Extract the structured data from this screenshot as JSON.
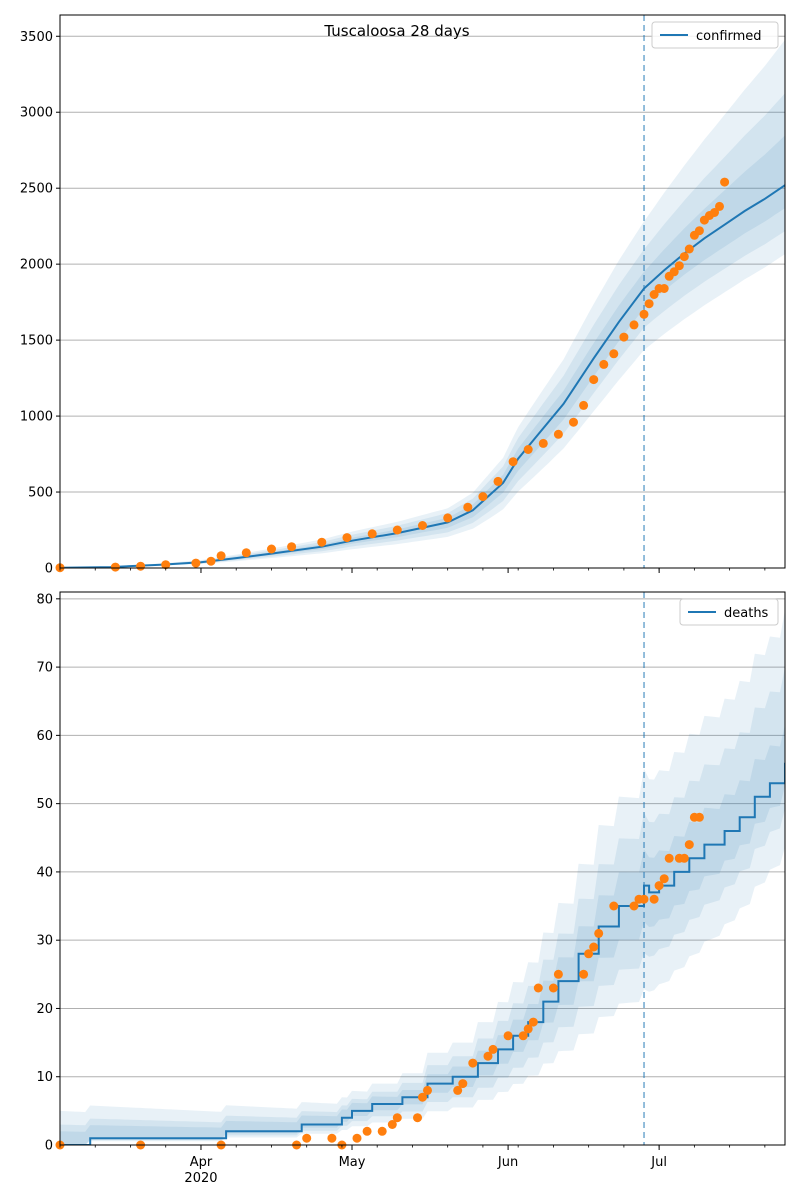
{
  "chart_data": [
    {
      "type": "line",
      "title": "Tuscaloosa 28 days",
      "xlabel": "",
      "ylabel": "",
      "x_axis": {
        "type": "date",
        "range": [
          "2020-03-04",
          "2020-07-26"
        ],
        "major_ticks": [
          {
            "date": "2020-04-01",
            "label": "Apr",
            "sublabel": "2020"
          },
          {
            "date": "2020-05-01",
            "label": "May",
            "sublabel": ""
          },
          {
            "date": "2020-06-01",
            "label": "Jun",
            "sublabel": ""
          },
          {
            "date": "2020-07-01",
            "label": "Jul",
            "sublabel": ""
          }
        ]
      },
      "ylim": [
        0,
        3640
      ],
      "yticks": [
        0,
        500,
        1000,
        1500,
        2000,
        2500,
        3000,
        3500
      ],
      "grid": "horizontal",
      "legend": {
        "position": "top-right",
        "entries": [
          "confirmed"
        ]
      },
      "forecast_start": "2020-06-28",
      "series": [
        {
          "name": "confirmed",
          "kind": "line",
          "color": "#1f77b4",
          "points": [
            [
              "2020-03-04",
              2
            ],
            [
              "2020-03-14",
              6
            ],
            [
              "2020-03-24",
              22
            ],
            [
              "2020-04-01",
              38
            ],
            [
              "2020-04-08",
              65
            ],
            [
              "2020-04-15",
              95
            ],
            [
              "2020-04-25",
              140
            ],
            [
              "2020-05-01",
              180
            ],
            [
              "2020-05-10",
              230
            ],
            [
              "2020-05-20",
              300
            ],
            [
              "2020-05-25",
              380
            ],
            [
              "2020-05-31",
              560
            ],
            [
              "2020-06-03",
              720
            ],
            [
              "2020-06-07",
              880
            ],
            [
              "2020-06-12",
              1080
            ],
            [
              "2020-06-18",
              1380
            ],
            [
              "2020-06-23",
              1620
            ],
            [
              "2020-06-28",
              1840
            ],
            [
              "2020-07-02",
              1960
            ],
            [
              "2020-07-06",
              2070
            ],
            [
              "2020-07-10",
              2170
            ],
            [
              "2020-07-14",
              2260
            ],
            [
              "2020-07-18",
              2350
            ],
            [
              "2020-07-22",
              2430
            ],
            [
              "2020-07-26",
              2520
            ]
          ]
        }
      ],
      "observed": {
        "color": "#ff7f0e",
        "points": [
          [
            "2020-03-04",
            2
          ],
          [
            "2020-03-15",
            6
          ],
          [
            "2020-03-20",
            12
          ],
          [
            "2020-03-25",
            22
          ],
          [
            "2020-03-31",
            32
          ],
          [
            "2020-04-03",
            45
          ],
          [
            "2020-04-05",
            80
          ],
          [
            "2020-04-10",
            100
          ],
          [
            "2020-04-15",
            125
          ],
          [
            "2020-04-19",
            140
          ],
          [
            "2020-04-25",
            170
          ],
          [
            "2020-04-30",
            200
          ],
          [
            "2020-05-05",
            225
          ],
          [
            "2020-05-10",
            250
          ],
          [
            "2020-05-15",
            280
          ],
          [
            "2020-05-20",
            330
          ],
          [
            "2020-05-24",
            400
          ],
          [
            "2020-05-27",
            470
          ],
          [
            "2020-05-30",
            570
          ],
          [
            "2020-06-02",
            700
          ],
          [
            "2020-06-05",
            780
          ],
          [
            "2020-06-08",
            820
          ],
          [
            "2020-06-11",
            880
          ],
          [
            "2020-06-14",
            960
          ],
          [
            "2020-06-16",
            1070
          ],
          [
            "2020-06-18",
            1240
          ],
          [
            "2020-06-20",
            1340
          ],
          [
            "2020-06-22",
            1410
          ],
          [
            "2020-06-24",
            1520
          ],
          [
            "2020-06-26",
            1600
          ],
          [
            "2020-06-28",
            1670
          ],
          [
            "2020-06-29",
            1740
          ],
          [
            "2020-06-30",
            1800
          ],
          [
            "2020-07-01",
            1840
          ],
          [
            "2020-07-02",
            1840
          ],
          [
            "2020-07-03",
            1920
          ],
          [
            "2020-07-04",
            1950
          ],
          [
            "2020-07-05",
            1990
          ],
          [
            "2020-07-06",
            2050
          ],
          [
            "2020-07-07",
            2100
          ],
          [
            "2020-07-08",
            2190
          ],
          [
            "2020-07-09",
            2220
          ],
          [
            "2020-07-10",
            2290
          ],
          [
            "2020-07-11",
            2320
          ],
          [
            "2020-07-12",
            2340
          ],
          [
            "2020-07-13",
            2380
          ],
          [
            "2020-07-14",
            2540
          ]
        ]
      },
      "bands": {
        "color": "#1f77b4",
        "levels": [
          {
            "opacity": 0.1,
            "lower": [
              [
                0,
                0.7
              ],
              [
                85,
                0.68
              ],
              [
                116,
                0.78
              ],
              [
                144,
                0.82
              ]
            ],
            "upper": [
              [
                0,
                1.4
              ],
              [
                85,
                1.3
              ],
              [
                116,
                1.24
              ],
              [
                144,
                1.38
              ]
            ]
          },
          {
            "opacity": 0.1,
            "lower": [
              [
                0,
                0.8
              ],
              [
                85,
                0.78
              ],
              [
                116,
                0.86
              ],
              [
                144,
                0.88
              ]
            ],
            "upper": [
              [
                0,
                1.25
              ],
              [
                85,
                1.2
              ],
              [
                116,
                1.14
              ],
              [
                144,
                1.24
              ]
            ]
          },
          {
            "opacity": 0.1,
            "lower": [
              [
                0,
                0.9
              ],
              [
                85,
                0.88
              ],
              [
                116,
                0.93
              ],
              [
                144,
                0.94
              ]
            ],
            "upper": [
              [
                0,
                1.12
              ],
              [
                85,
                1.1
              ],
              [
                116,
                1.06
              ],
              [
                144,
                1.13
              ]
            ]
          }
        ]
      }
    },
    {
      "type": "line",
      "title": "",
      "xlabel": "",
      "ylabel": "",
      "ylim": [
        0,
        81
      ],
      "yticks": [
        0,
        10,
        20,
        30,
        40,
        50,
        60,
        70,
        80
      ],
      "grid": "horizontal",
      "legend": {
        "position": "top-right",
        "entries": [
          "deaths"
        ]
      },
      "forecast_start": "2020-06-28",
      "series": [
        {
          "name": "deaths",
          "kind": "step",
          "color": "#1f77b4",
          "points": [
            [
              "2020-03-04",
              0
            ],
            [
              "2020-03-10",
              1
            ],
            [
              "2020-04-06",
              2
            ],
            [
              "2020-04-21",
              3
            ],
            [
              "2020-04-29",
              4
            ],
            [
              "2020-05-01",
              5
            ],
            [
              "2020-05-05",
              6
            ],
            [
              "2020-05-11",
              7
            ],
            [
              "2020-05-16",
              9
            ],
            [
              "2020-05-21",
              10
            ],
            [
              "2020-05-26",
              12
            ],
            [
              "2020-05-30",
              14
            ],
            [
              "2020-06-02",
              16
            ],
            [
              "2020-06-05",
              18
            ],
            [
              "2020-06-08",
              21
            ],
            [
              "2020-06-11",
              24
            ],
            [
              "2020-06-15",
              28
            ],
            [
              "2020-06-19",
              32
            ],
            [
              "2020-06-23",
              35
            ],
            [
              "2020-06-28",
              38
            ],
            [
              "2020-06-29",
              37
            ],
            [
              "2020-07-01",
              38
            ],
            [
              "2020-07-04",
              40
            ],
            [
              "2020-07-07",
              42
            ],
            [
              "2020-07-10",
              44
            ],
            [
              "2020-07-14",
              46
            ],
            [
              "2020-07-17",
              48
            ],
            [
              "2020-07-20",
              51
            ],
            [
              "2020-07-23",
              53
            ],
            [
              "2020-07-26",
              56
            ]
          ]
        }
      ],
      "observed": {
        "color": "#ff7f0e",
        "points": [
          [
            "2020-03-04",
            0
          ],
          [
            "2020-03-20",
            0
          ],
          [
            "2020-04-05",
            0
          ],
          [
            "2020-04-20",
            0
          ],
          [
            "2020-04-22",
            1
          ],
          [
            "2020-04-27",
            1
          ],
          [
            "2020-04-29",
            0
          ],
          [
            "2020-05-02",
            1
          ],
          [
            "2020-05-04",
            2
          ],
          [
            "2020-05-07",
            2
          ],
          [
            "2020-05-09",
            3
          ],
          [
            "2020-05-10",
            4
          ],
          [
            "2020-05-14",
            4
          ],
          [
            "2020-05-15",
            7
          ],
          [
            "2020-05-16",
            8
          ],
          [
            "2020-05-22",
            8
          ],
          [
            "2020-05-23",
            9
          ],
          [
            "2020-05-25",
            12
          ],
          [
            "2020-05-28",
            13
          ],
          [
            "2020-05-29",
            14
          ],
          [
            "2020-06-01",
            16
          ],
          [
            "2020-06-04",
            16
          ],
          [
            "2020-06-05",
            17
          ],
          [
            "2020-06-06",
            18
          ],
          [
            "2020-06-07",
            23
          ],
          [
            "2020-06-10",
            23
          ],
          [
            "2020-06-11",
            25
          ],
          [
            "2020-06-16",
            25
          ],
          [
            "2020-06-17",
            28
          ],
          [
            "2020-06-18",
            29
          ],
          [
            "2020-06-19",
            31
          ],
          [
            "2020-06-22",
            35
          ],
          [
            "2020-06-26",
            35
          ],
          [
            "2020-06-27",
            36
          ],
          [
            "2020-06-28",
            36
          ],
          [
            "2020-06-30",
            36
          ],
          [
            "2020-07-01",
            38
          ],
          [
            "2020-07-02",
            39
          ],
          [
            "2020-07-03",
            42
          ],
          [
            "2020-07-05",
            42
          ],
          [
            "2020-07-06",
            42
          ],
          [
            "2020-07-07",
            44
          ],
          [
            "2020-07-08",
            48
          ],
          [
            "2020-07-09",
            48
          ]
        ]
      },
      "bands": {
        "color": "#1f77b4",
        "levels": [
          {
            "opacity": 0.1,
            "lower": [
              [
                0,
                0
              ],
              [
                85,
                0.55
              ],
              [
                116,
                0.6
              ],
              [
                144,
                0.78
              ]
            ],
            "upper": [
              [
                0,
                5
              ],
              [
                85,
                1.5
              ],
              [
                116,
                1.45
              ],
              [
                144,
                1.4
              ]
            ]
          },
          {
            "opacity": 0.1,
            "lower": [
              [
                0,
                0
              ],
              [
                85,
                0.7
              ],
              [
                116,
                0.74
              ],
              [
                144,
                0.88
              ]
            ],
            "upper": [
              [
                0,
                3
              ],
              [
                85,
                1.3
              ],
              [
                116,
                1.28
              ],
              [
                144,
                1.25
              ]
            ]
          },
          {
            "opacity": 0.1,
            "lower": [
              [
                0,
                0
              ],
              [
                85,
                0.85
              ],
              [
                116,
                0.86
              ],
              [
                144,
                0.94
              ]
            ],
            "upper": [
              [
                0,
                2
              ],
              [
                85,
                1.15
              ],
              [
                116,
                1.14
              ],
              [
                144,
                1.1
              ]
            ]
          }
        ]
      }
    }
  ]
}
